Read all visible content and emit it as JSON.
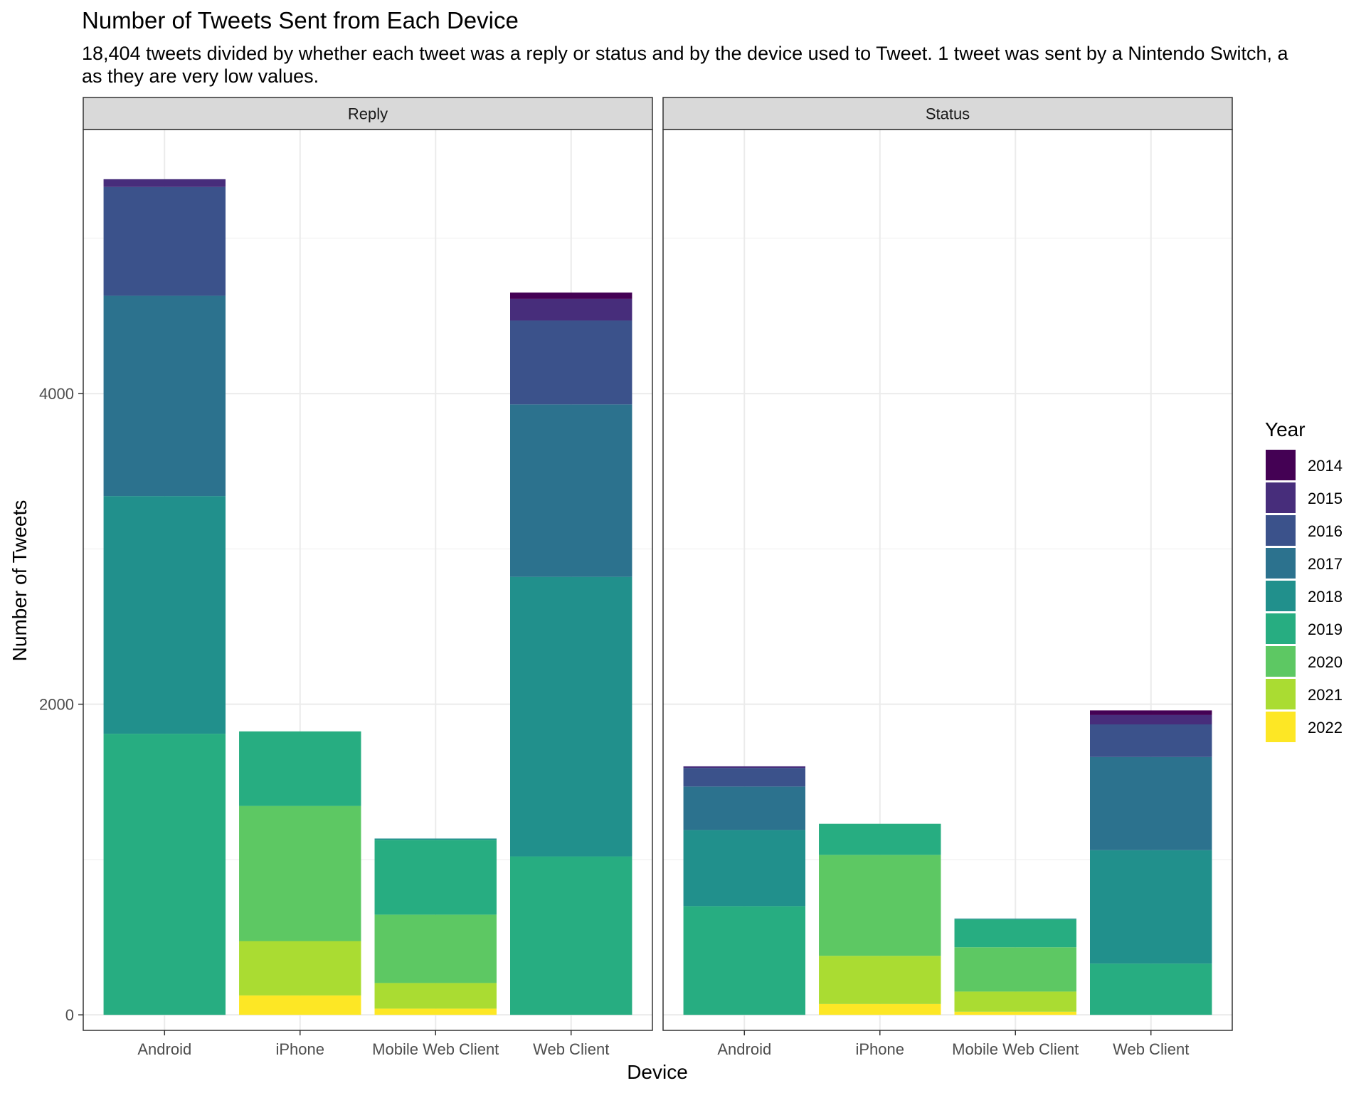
{
  "chart_data": {
    "type": "bar",
    "stacked": true,
    "title": "Number of Tweets Sent from Each Device",
    "subtitle_lines": [
      "18,404 tweets divided by whether each tweet was a reply or status and by the device used to Tweet. 1 tweet was sent by a Nintendo Switch, a",
      "as they are very low values."
    ],
    "xlabel": "Device",
    "ylabel": "Number of Tweets",
    "yticks": [
      0,
      2000,
      4000
    ],
    "ylim": [
      -100,
      5700
    ],
    "grid": true,
    "legend": {
      "title": "Year",
      "position": "right",
      "entries": [
        "2014",
        "2015",
        "2016",
        "2017",
        "2018",
        "2019",
        "2020",
        "2021",
        "2022"
      ]
    },
    "colors": {
      "2014": "#440154",
      "2015": "#472D7B",
      "2016": "#3B528B",
      "2017": "#2C728E",
      "2018": "#21908C",
      "2019": "#27AD81",
      "2020": "#5DC863",
      "2021": "#AADC32",
      "2022": "#FDE725"
    },
    "categories": [
      "Android",
      "iPhone",
      "Mobile Web Client",
      "Web Client"
    ],
    "panels": [
      {
        "name": "Reply",
        "bars": [
          {
            "category": "Android",
            "segments": {
              "2015": 50,
              "2016": 700,
              "2017": 1290,
              "2018": 1530,
              "2019": 1810
            }
          },
          {
            "category": "iPhone",
            "segments": {
              "2019": 480,
              "2020": 870,
              "2021": 350,
              "2022": 125
            }
          },
          {
            "category": "Mobile Web Client",
            "segments": {
              "2018": 8,
              "2019": 482,
              "2020": 440,
              "2021": 165,
              "2022": 40
            }
          },
          {
            "category": "Web Client",
            "segments": {
              "2014": 40,
              "2015": 140,
              "2016": 540,
              "2017": 1110,
              "2018": 1800,
              "2019": 1020
            }
          }
        ]
      },
      {
        "name": "Status",
        "bars": [
          {
            "category": "Android",
            "segments": {
              "2015": 10,
              "2016": 120,
              "2017": 280,
              "2018": 490,
              "2019": 700
            }
          },
          {
            "category": "iPhone",
            "segments": {
              "2019": 200,
              "2020": 650,
              "2021": 310,
              "2022": 70
            }
          },
          {
            "category": "Mobile Web Client",
            "segments": {
              "2018": 6,
              "2019": 179,
              "2020": 285,
              "2021": 130,
              "2022": 20
            }
          },
          {
            "category": "Web Client",
            "segments": {
              "2014": 30,
              "2015": 60,
              "2016": 210,
              "2017": 600,
              "2018": 730,
              "2019": 330
            }
          }
        ]
      }
    ]
  }
}
